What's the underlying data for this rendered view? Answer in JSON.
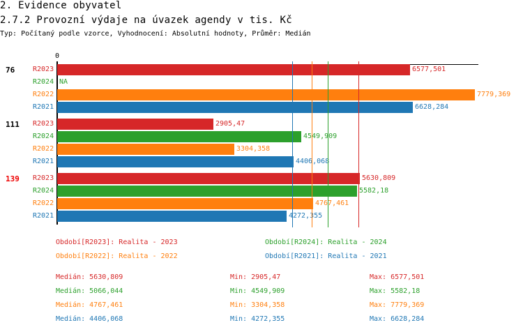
{
  "header": {
    "title": "2. Evidence obyvatel",
    "subtitle": "2.7.2 Provozní výdaje na úvazek agendy v tis. Kč",
    "info": "Typ: Počítaný podle vzorce, Vyhodnocení: Absolutní hodnoty, Průměr: Medián"
  },
  "colors": {
    "R2023": "#d62728",
    "R2024": "#2ca02c",
    "R2022": "#ff7f0e",
    "R2021": "#1f77b4"
  },
  "chart_data": {
    "type": "bar",
    "orientation": "horizontal",
    "x_tick_label": "0",
    "xlim": [
      0,
      7850
    ],
    "groups": [
      {
        "label": "76",
        "highlight": false,
        "bars": [
          {
            "series": "R2023",
            "value": 6577.501,
            "text": "6577,501"
          },
          {
            "series": "R2024",
            "value": null,
            "text": "NA"
          },
          {
            "series": "R2022",
            "value": 7779.369,
            "text": "7779,369"
          },
          {
            "series": "R2021",
            "value": 6628.284,
            "text": "6628,284"
          }
        ]
      },
      {
        "label": "111",
        "highlight": false,
        "bars": [
          {
            "series": "R2023",
            "value": 2905.47,
            "text": "2905,47"
          },
          {
            "series": "R2024",
            "value": 4549.909,
            "text": "4549,909"
          },
          {
            "series": "R2022",
            "value": 3304.358,
            "text": "3304,358"
          },
          {
            "series": "R2021",
            "value": 4406.068,
            "text": "4406,068"
          }
        ]
      },
      {
        "label": "139",
        "highlight": true,
        "bars": [
          {
            "series": "R2023",
            "value": 5630.809,
            "text": "5630,809"
          },
          {
            "series": "R2024",
            "value": 5582.18,
            "text": "5582,18"
          },
          {
            "series": "R2022",
            "value": 4767.461,
            "text": "4767,461"
          },
          {
            "series": "R2021",
            "value": 4272.355,
            "text": "4272,355"
          }
        ]
      }
    ],
    "median_lines": [
      {
        "series": "R2023",
        "value": 5630.809
      },
      {
        "series": "R2024",
        "value": 5066.044
      },
      {
        "series": "R2022",
        "value": 4767.461
      },
      {
        "series": "R2021",
        "value": 4406.068
      }
    ],
    "legend": [
      {
        "series": "R2023",
        "text": "Období[R2023]: Realita - 2023"
      },
      {
        "series": "R2024",
        "text": "Období[R2024]: Realita - 2024"
      },
      {
        "series": "R2022",
        "text": "Období[R2022]: Realita - 2022"
      },
      {
        "series": "R2021",
        "text": "Období[R2021]: Realita - 2021"
      }
    ],
    "stats": [
      {
        "series": "R2023",
        "median": "Medián: 5630,809",
        "min": "Min: 2905,47",
        "max": "Max: 6577,501"
      },
      {
        "series": "R2024",
        "median": "Medián: 5066,044",
        "min": "Min: 4549,909",
        "max": "Max: 5582,18"
      },
      {
        "series": "R2022",
        "median": "Medián: 4767,461",
        "min": "Min: 3304,358",
        "max": "Max: 7779,369"
      },
      {
        "series": "R2021",
        "median": "Medián: 4406,068",
        "min": "Min: 4272,355",
        "max": "Max: 6628,284"
      }
    ]
  }
}
